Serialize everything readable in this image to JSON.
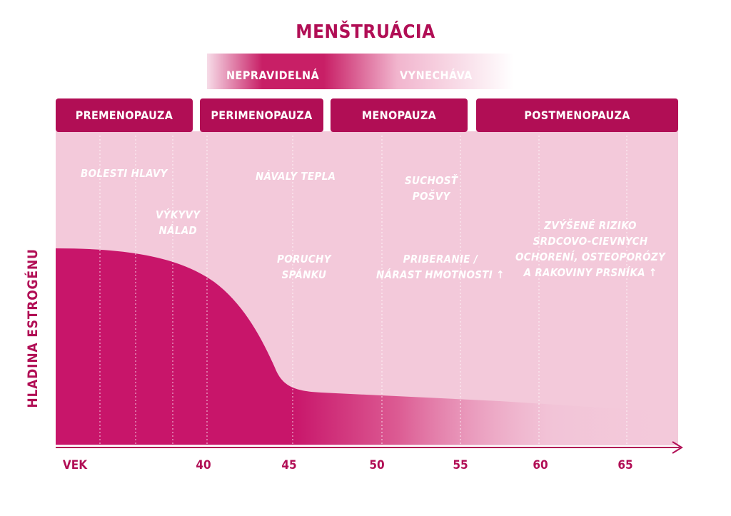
{
  "title": "MENŠTRUÁCIA",
  "menstruation": {
    "irregular": "NEPRAVIDELNÁ",
    "missing": "VYNECHÁVA"
  },
  "phases": [
    "PREMENOPAUZA",
    "PERIMENOPAUZA",
    "MENOPAUZA",
    "POSTMENOPAUZA"
  ],
  "symptoms": {
    "headache": [
      "BOLESTI HLAVY"
    ],
    "mood": [
      "VÝKYVY",
      "NÁLAD"
    ],
    "hot_flashes": [
      "NÁVALY TEPLA"
    ],
    "sleep": [
      "PORUCHY",
      "SPÁNKU"
    ],
    "dryness": [
      "SUCHOSŤ",
      "POŠVY"
    ],
    "weight": [
      "PRIBERANIE /",
      "NÁRAST HMOTNOSTI ↑"
    ],
    "risk": [
      "ZVÝŠENÉ RIZIKO",
      "SRDCOVO-CIEVNYCH",
      "OCHORENÍ, OSTEOPORÓZY",
      "A RAKOVINY PRSNÍKA ↑"
    ]
  },
  "axis": {
    "ylabel": "HLADINA ESTROGÉNU",
    "xlabel": "VEK",
    "ticks": [
      "40",
      "45",
      "50",
      "55",
      "60",
      "65"
    ]
  },
  "colors": {
    "accent": "#b10e55",
    "band": "#c81f66",
    "light": "#f3c9da"
  }
}
